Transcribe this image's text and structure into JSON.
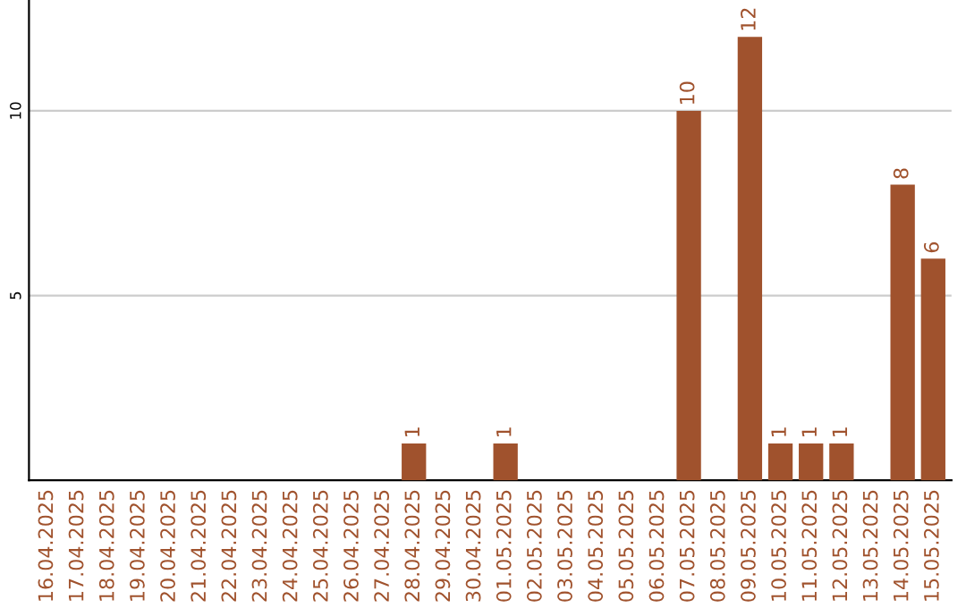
{
  "chart_data": {
    "type": "bar",
    "categories": [
      "16.04.2025",
      "17.04.2025",
      "18.04.2025",
      "19.04.2025",
      "20.04.2025",
      "21.04.2025",
      "22.04.2025",
      "23.04.2025",
      "24.04.2025",
      "25.04.2025",
      "26.04.2025",
      "27.04.2025",
      "28.04.2025",
      "29.04.2025",
      "30.04.2025",
      "01.05.2025",
      "02.05.2025",
      "03.05.2025",
      "04.05.2025",
      "05.05.2025",
      "06.05.2025",
      "07.05.2025",
      "08.05.2025",
      "09.05.2025",
      "10.05.2025",
      "11.05.2025",
      "12.05.2025",
      "13.05.2025",
      "14.05.2025",
      "15.05.2025"
    ],
    "values": [
      0,
      0,
      0,
      0,
      0,
      0,
      0,
      0,
      0,
      0,
      0,
      0,
      1,
      0,
      0,
      1,
      0,
      0,
      0,
      0,
      0,
      10,
      0,
      12,
      1,
      1,
      1,
      0,
      8,
      6
    ],
    "value_labels": [
      null,
      null,
      null,
      null,
      null,
      null,
      null,
      null,
      null,
      null,
      null,
      null,
      "1",
      null,
      null,
      "1",
      null,
      null,
      null,
      null,
      null,
      "10",
      null,
      "12",
      "1",
      "1",
      "1",
      null,
      "8",
      "6"
    ],
    "color": "#a0522d",
    "ylim": [
      0,
      13
    ],
    "yticks": [
      5,
      10
    ],
    "grid": "y"
  }
}
